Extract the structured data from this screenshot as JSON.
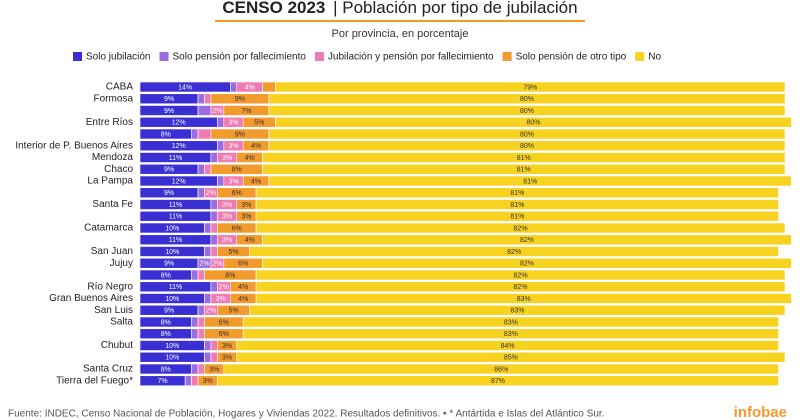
{
  "chart_data": {
    "type": "stacked-bar-horizontal",
    "title": "CENSO 2023",
    "title_detail": "| Población por tipo de jubilación",
    "subtitle": "Por provincia, en porcentaje",
    "source": "Fuente: INDEC, Censo Nacional de Población, Hogares y Viviendas 2022. Resultados definitivos. • * Antártida e Islas del Atlántico Sur.",
    "brand": "infobae",
    "xlim": [
      0,
      100
    ],
    "categories": [
      "CABA",
      "Formosa",
      null,
      "Entre Ríos",
      null,
      "Interior de P. Buenos Aires",
      "Mendoza",
      "Chaco",
      "La Pampa",
      null,
      "Santa Fe",
      null,
      "Catamarca",
      null,
      "San Juan",
      "Jujuy",
      null,
      "Río Negro",
      "Gran Buenos Aires",
      "San Luis",
      "Salta",
      null,
      "Chubut",
      null,
      "Santa Cruz",
      "Tierra del Fuego*"
    ],
    "series": [
      {
        "name": "Solo jubilación",
        "color": "#3a2fd3",
        "values": [
          14,
          9,
          9,
          12,
          8,
          12,
          11,
          9,
          12,
          9,
          11,
          11,
          10,
          11,
          10,
          9,
          8,
          11,
          10,
          9,
          8,
          8,
          10,
          10,
          8,
          7
        ],
        "value_labels": [
          "14%",
          "9%",
          "9%",
          "12%",
          "8%",
          "12%",
          "11%",
          "9%",
          "12%",
          "9%",
          "11%",
          "11%",
          "10%",
          "11%",
          "10%",
          "9%",
          "8%",
          "11%",
          "10%",
          "9%",
          "8%",
          "8%",
          "10%",
          "10%",
          "8%",
          "7%"
        ]
      },
      {
        "name": "Solo pensión por fallecimiento",
        "color": "#9b6ce0",
        "values": [
          1,
          1,
          2,
          1,
          1,
          1,
          1,
          1,
          1,
          1,
          1,
          1,
          1,
          1,
          1,
          2,
          1,
          1,
          1,
          1,
          1,
          1,
          1,
          1,
          1,
          1
        ],
        "value_labels": [
          null,
          null,
          null,
          null,
          null,
          null,
          null,
          null,
          null,
          null,
          null,
          null,
          null,
          null,
          null,
          "2%",
          null,
          null,
          null,
          null,
          null,
          null,
          null,
          null,
          null,
          null
        ]
      },
      {
        "name": "Jubilación y pensión por fallecimiento",
        "color": "#f07ab2",
        "values": [
          4,
          1,
          2,
          3,
          2,
          3,
          3,
          1,
          3,
          2,
          3,
          3,
          1,
          3,
          1,
          2,
          1,
          2,
          3,
          2,
          1,
          1,
          1,
          1,
          1,
          1
        ],
        "value_labels": [
          "4%",
          null,
          "2%",
          "3%",
          null,
          "3%",
          "3%",
          null,
          "3%",
          "2%",
          "3%",
          "3%",
          null,
          "3%",
          null,
          "2%",
          null,
          "2%",
          "3%",
          "2%",
          null,
          null,
          null,
          null,
          null,
          null
        ]
      },
      {
        "name": "Solo pensión de otro tipo",
        "color": "#f39a2c",
        "values": [
          2,
          9,
          7,
          5,
          9,
          4,
          4,
          8,
          4,
          6,
          3,
          3,
          6,
          4,
          5,
          6,
          8,
          4,
          4,
          5,
          6,
          6,
          3,
          3,
          3,
          3
        ],
        "value_labels": [
          null,
          "9%",
          "7%",
          "5%",
          "9%",
          "4%",
          "4%",
          "8%",
          "4%",
          "6%",
          "3%",
          "3%",
          "6%",
          "4%",
          "5%",
          "6%",
          "8%",
          "4%",
          "4%",
          "5%",
          "6%",
          "6%",
          "3%",
          "3%",
          "3%",
          "3%"
        ]
      },
      {
        "name": "No",
        "color": "#f7d21e",
        "values": [
          79,
          80,
          80,
          80,
          80,
          80,
          81,
          81,
          81,
          81,
          81,
          81,
          82,
          82,
          82,
          82,
          82,
          82,
          83,
          83,
          83,
          83,
          84,
          85,
          86,
          87
        ],
        "value_labels": [
          "79%",
          "80%",
          "80%",
          "80%",
          "80%",
          "80%",
          "81%",
          "81%",
          "81%",
          "81%",
          "81%",
          "81%",
          "82%",
          "82%",
          "82%",
          "82%",
          "82%",
          "82%",
          "83%",
          "83%",
          "83%",
          "83%",
          "84%",
          "85%",
          "86%",
          "87%"
        ]
      }
    ]
  }
}
